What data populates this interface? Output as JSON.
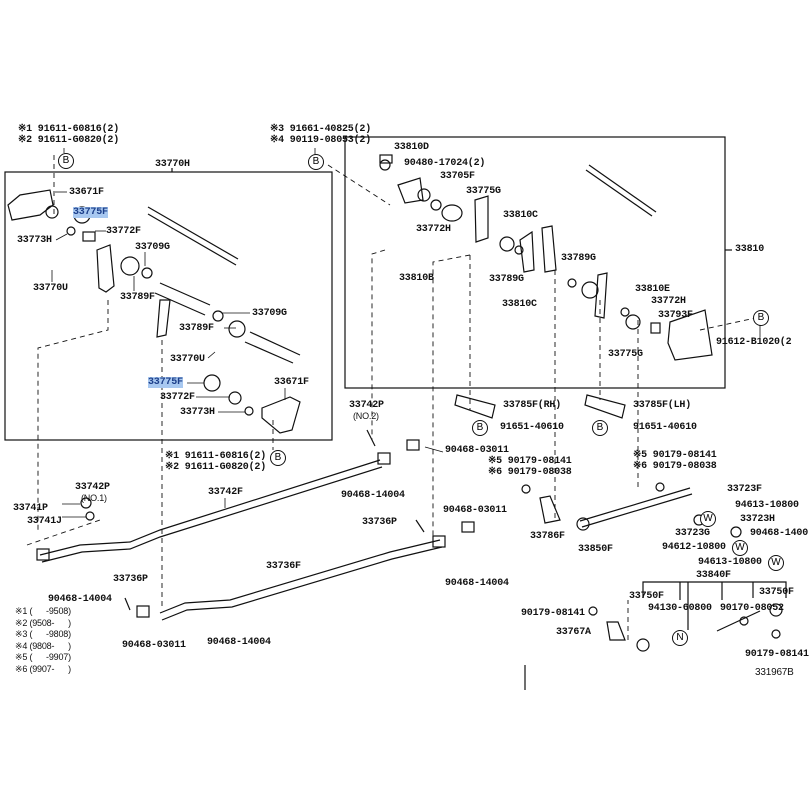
{
  "highlight_color": "#a8c8f0",
  "bolt_marker": "B",
  "washer_marker": "W",
  "nut_marker": "N",
  "parts": [
    "※1 91611-60816(2)",
    "※2 91611-G0820(2)",
    "33770H",
    "33671F",
    "33775F",
    "33773H",
    "33772F",
    "33709G",
    "33770U",
    "33789F",
    "33709G",
    "33789F",
    "33770U",
    "33775F",
    "33671F",
    "33772F",
    "33773H",
    "※1 91611-60816(2)",
    "※2 91611-G0820(2)",
    "※3 91661-40825(2)",
    "※4 90119-08053(2)",
    "33810D",
    "90480-17024(2)",
    "33705F",
    "33775G",
    "33810C",
    "33772H",
    "33810",
    "33789G",
    "33810B",
    "33789G",
    "33810E",
    "33772H",
    "33810C",
    "33793F",
    "91612-B1020(2",
    "33775G",
    "33742P",
    "(NO.2)",
    "33785F(RH)",
    "91651-40610",
    "33785F(LH)",
    "91651-40610",
    "90468-03011",
    "※5 90179-08141",
    "※6 90179-08038",
    "※5 90179-08141",
    "※6 90179-08038",
    "90468-14004",
    "33723F",
    "94613-10800",
    "33723H",
    "33723G",
    "90468-1400",
    "94612-10800",
    "94613-10800",
    "33786F",
    "33850F",
    "33736P",
    "90468-03011",
    "33736F",
    "90468-14004",
    "33742P",
    "(NO.1)",
    "33742F",
    "33741P",
    "33741J",
    "90468-14004",
    "33736P",
    "90468-03011",
    "90468-14004",
    "33840F",
    "33750F",
    "33750F",
    "90179-08141",
    "94130-60800",
    "90170-08052",
    "33767A",
    "90179-08141",
    "331967B"
  ],
  "legend": [
    "※1 (      -9508)",
    "※2 (9508-      )",
    "※3 (      -9808)",
    "※4 (9808-      )",
    "※5 (      -9907)",
    "※6 (9907-      )"
  ]
}
